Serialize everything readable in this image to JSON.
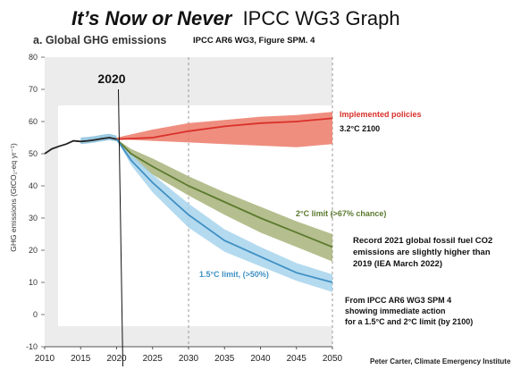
{
  "header": {
    "title_emphasis": "It’s Now or Never",
    "title_rest": "IPCC WG3 Graph",
    "panel_title": "a. Global GHG emissions",
    "source": "IPCC AR6 WG3, Figure SPM. 4"
  },
  "annotations": {
    "implemented_label": "Implemented policies",
    "implemented_value": "3.2°C  2100",
    "two_deg_label": "2°C limit (>67% chance)",
    "one_five_label": "1.5°C limit, (>50%)",
    "record_note": [
      "Record 2021 global fossil fuel CO2",
      "emissions are slightly higher than",
      "2019 (IEA March 2022)"
    ],
    "source_note": [
      "From IPCC AR6 WG3 SPM 4",
      "showing immediate action",
      "for a 1.5°C and 2°C limit (by 2100)"
    ],
    "credit": "Peter Carter, Climate Emergency Institute"
  },
  "colors": {
    "historical": "#222222",
    "implemented": "#d9302a",
    "implemented_band": "#ec7a68",
    "two_deg": "#5b7a2e",
    "two_deg_band": "#a8b37a",
    "one_five": "#3f90c4",
    "one_five_band": "#a7d3ec",
    "marker_2020_label": "#111111"
  },
  "chart_data": {
    "type": "line",
    "title": "a. Global GHG emissions",
    "ylabel": "GHG emissions (GtCO₂-eq yr⁻¹)",
    "xlim": [
      2010,
      2050
    ],
    "ylim": [
      -10,
      80
    ],
    "x_ticks": [
      2010,
      2015,
      2020,
      2025,
      2030,
      2035,
      2040,
      2045,
      2050
    ],
    "y_ticks": [
      -10,
      0,
      10,
      20,
      30,
      40,
      50,
      60,
      70,
      80
    ],
    "marker_year": 2020,
    "marker_label": "2020",
    "dashed_years": [
      2030,
      2050
    ],
    "historical": {
      "x": [
        2010,
        2011,
        2012,
        2013,
        2014,
        2015,
        2016,
        2017,
        2018,
        2019,
        2020
      ],
      "y": [
        50,
        51.5,
        52.3,
        53,
        54,
        53.8,
        54,
        54.3,
        54.7,
        55,
        54.5
      ],
      "band_x": [
        2015,
        2016,
        2017,
        2018,
        2019,
        2020
      ],
      "band_low": [
        53,
        53.2,
        53.5,
        53.9,
        54.2,
        53.8
      ],
      "band_high": [
        55,
        55.2,
        55.5,
        55.9,
        56.2,
        55.6
      ]
    },
    "series": [
      {
        "name": "Implemented policies",
        "x": [
          2020,
          2025,
          2030,
          2035,
          2040,
          2045,
          2050
        ],
        "y": [
          54.5,
          55,
          57,
          58.5,
          59.5,
          60,
          61
        ],
        "low": [
          54.5,
          54,
          53.5,
          53,
          52.5,
          52,
          53
        ],
        "high": [
          55,
          57.5,
          59.5,
          60.5,
          61.5,
          62,
          63
        ]
      },
      {
        "name": "2°C limit (>67% chance)",
        "x": [
          2020,
          2022,
          2025,
          2030,
          2035,
          2040,
          2045,
          2050
        ],
        "y": [
          54.5,
          50,
          46,
          40,
          35,
          30,
          25.5,
          21
        ],
        "low": [
          54.5,
          48.5,
          43.5,
          37,
          31,
          25.5,
          21,
          16.5
        ],
        "high": [
          54.5,
          51.5,
          48.5,
          43,
          38,
          33.5,
          29,
          25
        ]
      },
      {
        "name": "1.5°C limit, (>50%)",
        "x": [
          2020,
          2022,
          2025,
          2030,
          2035,
          2040,
          2045,
          2050
        ],
        "y": [
          54.5,
          48,
          41,
          31,
          23,
          18,
          13,
          10
        ],
        "low": [
          54.5,
          46.5,
          38,
          27,
          19.5,
          15,
          10.5,
          7
        ],
        "high": [
          54.5,
          50,
          43.5,
          34.5,
          26.5,
          21,
          16,
          12.5
        ]
      }
    ]
  }
}
